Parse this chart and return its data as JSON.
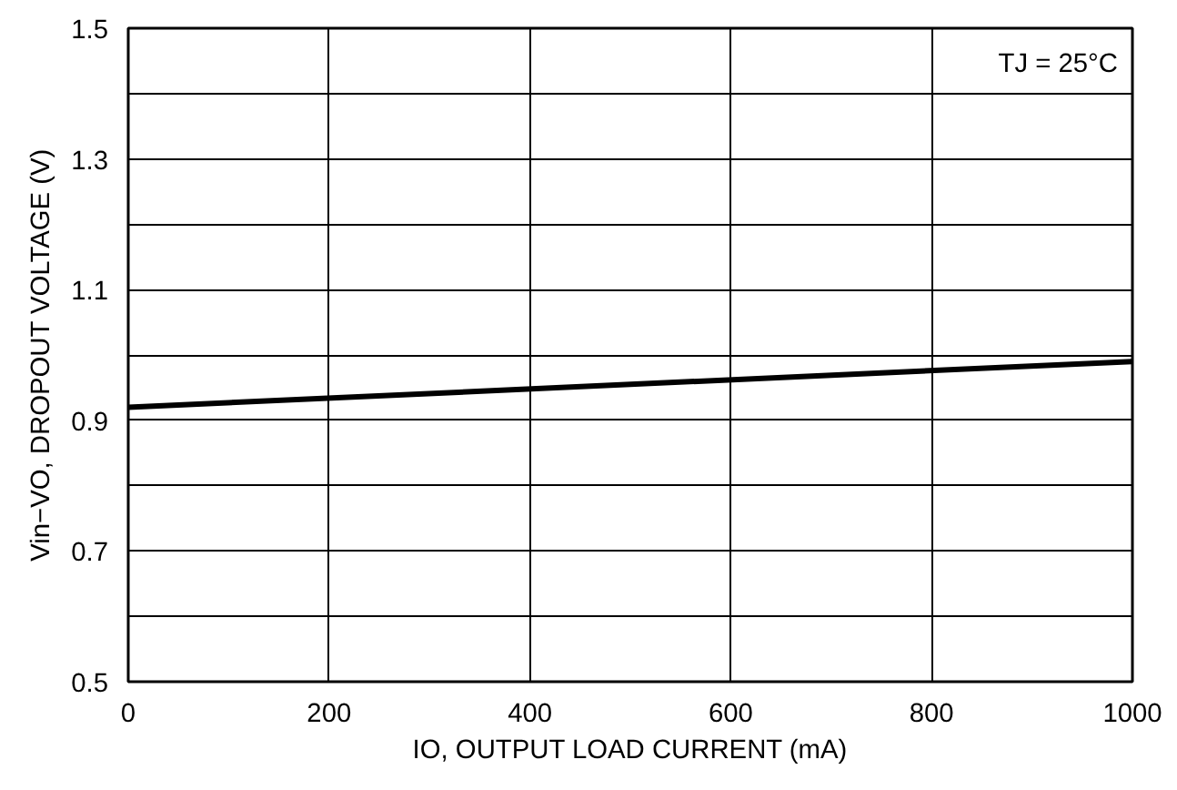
{
  "chart_data": {
    "type": "line",
    "xlabel": "IO, OUTPUT LOAD CURRENT (mA)",
    "ylabel": "Vin−VO, DROPOUT VOLTAGE (V)",
    "annotations": [
      "TJ = 25°C"
    ],
    "x": [
      0,
      1000
    ],
    "series": [
      {
        "color": "#000000",
        "values": [
          0.92,
          0.99
        ]
      }
    ],
    "xlim": [
      0,
      1000
    ],
    "xticks": [
      0,
      200,
      400,
      600,
      800,
      1000
    ],
    "ylim": [
      0.5,
      1.5
    ],
    "yticks": [
      0.5,
      {
        "value": 0.6,
        "label": null
      },
      0.7,
      {
        "value": 0.8,
        "label": null
      },
      0.9,
      {
        "value": 1.0,
        "label": null
      },
      1.1,
      {
        "value": 1.2,
        "label": null
      },
      1.3,
      {
        "value": 1.4,
        "label": null
      },
      1.5
    ],
    "grid": true,
    "marker": "none",
    "line_style": "solid"
  }
}
